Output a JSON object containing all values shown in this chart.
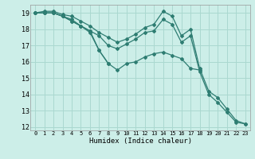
{
  "xlabel": "Humidex (Indice chaleur)",
  "bg_color": "#cceee8",
  "grid_color": "#aad8d0",
  "line_color": "#2e7d72",
  "xlim": [
    -0.5,
    23.5
  ],
  "ylim": [
    11.8,
    19.5
  ],
  "xticks": [
    0,
    1,
    2,
    3,
    4,
    5,
    6,
    7,
    8,
    9,
    10,
    11,
    12,
    13,
    14,
    15,
    16,
    17,
    18,
    19,
    20,
    21,
    22,
    23
  ],
  "yticks": [
    12,
    13,
    14,
    15,
    16,
    17,
    18,
    19
  ],
  "series": [
    {
      "x": [
        0,
        1,
        2,
        3,
        4,
        5,
        6,
        7,
        8,
        9,
        10,
        11,
        12,
        13,
        14,
        15,
        16,
        17,
        18,
        19,
        20,
        21,
        22,
        23
      ],
      "y": [
        19.0,
        19.1,
        19.1,
        18.9,
        18.8,
        18.5,
        18.2,
        17.8,
        17.5,
        17.2,
        17.4,
        17.7,
        18.1,
        18.3,
        19.1,
        18.8,
        17.6,
        18.0,
        15.6,
        14.2,
        13.8,
        13.1,
        12.4,
        12.2
      ]
    },
    {
      "x": [
        0,
        1,
        2,
        3,
        4,
        5,
        6,
        7,
        8,
        9,
        10,
        11,
        12,
        13,
        14,
        15,
        16,
        17,
        18,
        19,
        20,
        21,
        22,
        23
      ],
      "y": [
        19.0,
        19.0,
        19.0,
        18.8,
        18.5,
        18.2,
        17.9,
        17.6,
        17.0,
        16.8,
        17.1,
        17.4,
        17.8,
        17.9,
        18.6,
        18.3,
        17.2,
        17.6,
        15.4,
        14.0,
        13.5,
        12.9,
        12.3,
        12.2
      ]
    },
    {
      "x": [
        0,
        1,
        2,
        3,
        4,
        5,
        6,
        7,
        8,
        9,
        10,
        11,
        12,
        13,
        14,
        15,
        16,
        17,
        18
      ],
      "y": [
        19.0,
        19.0,
        19.0,
        18.8,
        18.6,
        18.2,
        17.8,
        16.7,
        15.9,
        15.5,
        15.9,
        16.0,
        16.3,
        16.5,
        16.6,
        16.4,
        16.2,
        15.6,
        15.5
      ]
    },
    {
      "x": [
        0,
        1,
        2,
        3,
        4,
        5,
        6,
        7,
        8
      ],
      "y": [
        19.0,
        19.0,
        19.0,
        18.8,
        18.5,
        18.2,
        17.9,
        16.7,
        15.9
      ]
    }
  ]
}
